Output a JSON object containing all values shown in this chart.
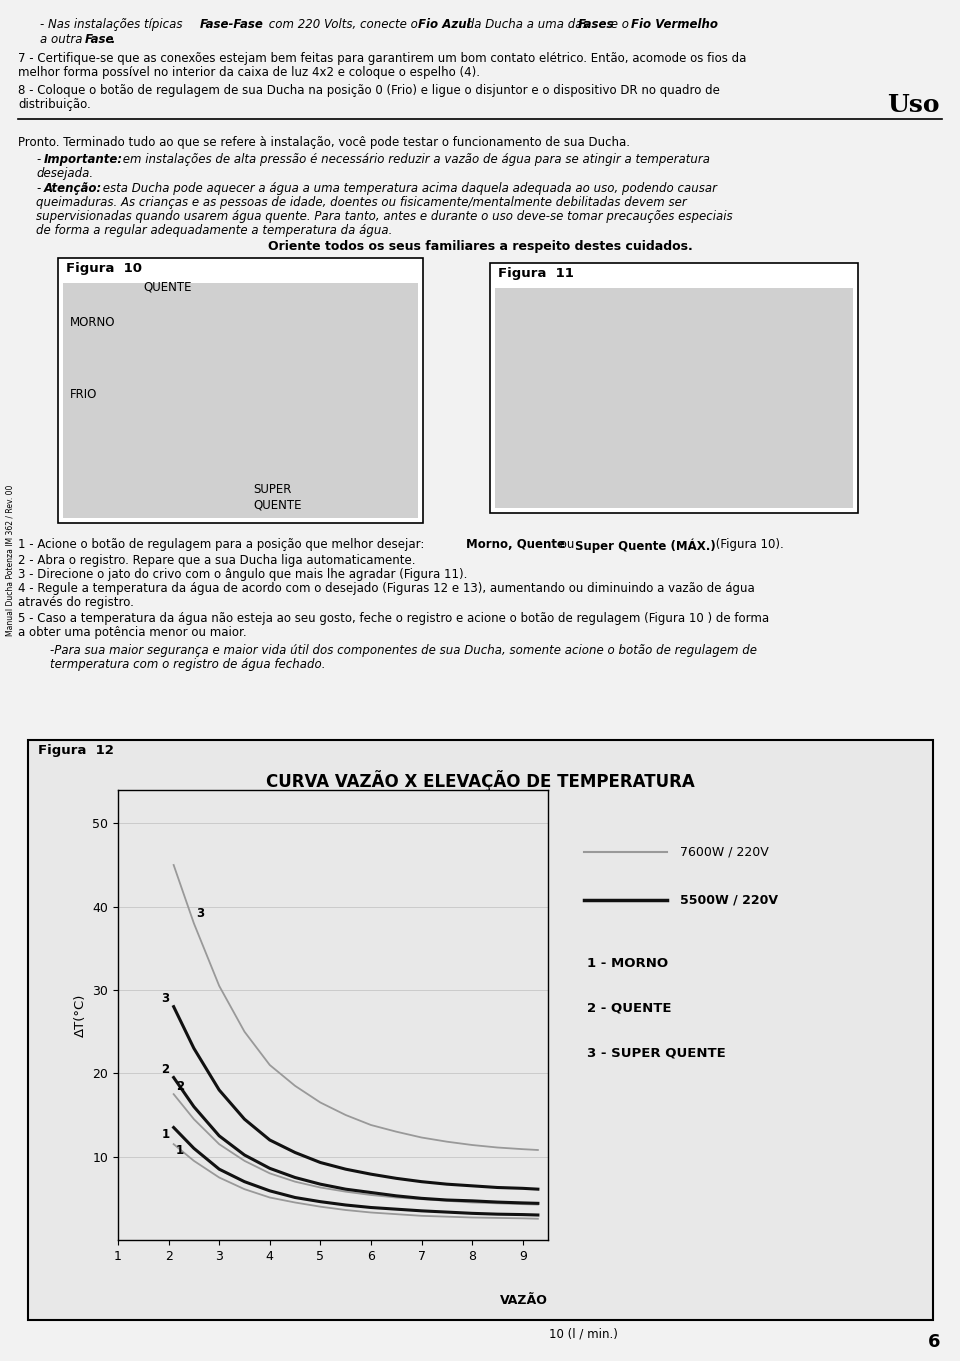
{
  "bg_color": "#f2f2f2",
  "page_bg": "#ffffff",
  "page_number": "6",
  "section_uso": "Uso",
  "title_chart": "CURVA VAZÃO X ELEVAÇÃO DE TEMPERATURA",
  "figura12_label": "Figura  12",
  "ylabel": "ΔT(°C)",
  "xticks": [
    1,
    2,
    3,
    4,
    5,
    6,
    7,
    8,
    9
  ],
  "yticks": [
    10,
    20,
    30,
    40,
    50
  ],
  "xmin": 1.0,
  "xmax": 9.5,
  "ymin": 0.0,
  "ymax": 54.0,
  "legend_7600": "7600W / 220V",
  "legend_5500": "5500W / 220V",
  "legend_labels": [
    "1 - MORNO",
    "2 - QUENTE",
    "3 - SUPER QUENTE"
  ],
  "color_7600": "#999999",
  "color_5500": "#111111",
  "curve_7600_3": {
    "x": [
      2.1,
      2.5,
      3.0,
      3.5,
      4.0,
      4.5,
      5.0,
      5.5,
      6.0,
      6.5,
      7.0,
      7.5,
      8.0,
      8.5,
      9.0,
      9.3
    ],
    "y": [
      45.0,
      38.0,
      30.5,
      25.0,
      21.0,
      18.5,
      16.5,
      15.0,
      13.8,
      13.0,
      12.3,
      11.8,
      11.4,
      11.1,
      10.9,
      10.8
    ]
  },
  "curve_7600_2": {
    "x": [
      2.1,
      2.5,
      3.0,
      3.5,
      4.0,
      4.5,
      5.0,
      5.5,
      6.0,
      6.5,
      7.0,
      7.5,
      8.0,
      8.5,
      9.0,
      9.3
    ],
    "y": [
      17.5,
      14.5,
      11.5,
      9.5,
      8.0,
      7.0,
      6.3,
      5.8,
      5.4,
      5.1,
      4.9,
      4.7,
      4.5,
      4.4,
      4.3,
      4.25
    ]
  },
  "curve_7600_1": {
    "x": [
      2.1,
      2.5,
      3.0,
      3.5,
      4.0,
      4.5,
      5.0,
      5.5,
      6.0,
      6.5,
      7.0,
      7.5,
      8.0,
      8.5,
      9.0,
      9.3
    ],
    "y": [
      11.5,
      9.5,
      7.5,
      6.1,
      5.1,
      4.5,
      4.0,
      3.6,
      3.3,
      3.1,
      2.9,
      2.8,
      2.7,
      2.65,
      2.6,
      2.55
    ]
  },
  "curve_5500_3": {
    "x": [
      2.1,
      2.5,
      3.0,
      3.5,
      4.0,
      4.5,
      5.0,
      5.5,
      6.0,
      6.5,
      7.0,
      7.5,
      8.0,
      8.5,
      9.0,
      9.3
    ],
    "y": [
      28.0,
      23.0,
      18.0,
      14.5,
      12.0,
      10.5,
      9.3,
      8.5,
      7.9,
      7.4,
      7.0,
      6.7,
      6.5,
      6.3,
      6.2,
      6.1
    ]
  },
  "curve_5500_2": {
    "x": [
      2.1,
      2.5,
      3.0,
      3.5,
      4.0,
      4.5,
      5.0,
      5.5,
      6.0,
      6.5,
      7.0,
      7.5,
      8.0,
      8.5,
      9.0,
      9.3
    ],
    "y": [
      19.5,
      16.0,
      12.5,
      10.2,
      8.6,
      7.5,
      6.7,
      6.1,
      5.7,
      5.3,
      5.0,
      4.8,
      4.7,
      4.55,
      4.45,
      4.4
    ]
  },
  "curve_5500_1": {
    "x": [
      2.1,
      2.5,
      3.0,
      3.5,
      4.0,
      4.5,
      5.0,
      5.5,
      6.0,
      6.5,
      7.0,
      7.5,
      8.0,
      8.5,
      9.0,
      9.3
    ],
    "y": [
      13.5,
      11.0,
      8.5,
      7.0,
      5.9,
      5.1,
      4.6,
      4.2,
      3.9,
      3.7,
      3.5,
      3.35,
      3.2,
      3.1,
      3.05,
      3.0
    ]
  }
}
